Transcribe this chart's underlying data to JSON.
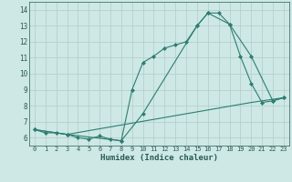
{
  "xlabel": "Humidex (Indice chaleur)",
  "bg_color": "#cde8e5",
  "grid_color": "#b5d0ce",
  "line_color": "#2e7d72",
  "xlim": [
    -0.5,
    23.5
  ],
  "ylim": [
    5.5,
    14.5
  ],
  "xticks": [
    0,
    1,
    2,
    3,
    4,
    5,
    6,
    7,
    8,
    9,
    10,
    11,
    12,
    13,
    14,
    15,
    16,
    17,
    18,
    19,
    20,
    21,
    22,
    23
  ],
  "yticks": [
    6,
    7,
    8,
    9,
    10,
    11,
    12,
    13,
    14
  ],
  "line1_x": [
    0,
    1,
    2,
    3,
    4,
    5,
    6,
    7,
    8,
    9,
    10,
    11,
    12,
    13,
    14,
    15,
    16,
    17,
    18,
    19,
    20,
    21,
    22,
    23
  ],
  "line1_y": [
    6.5,
    6.3,
    6.3,
    6.2,
    6.0,
    5.9,
    6.1,
    5.9,
    5.8,
    9.0,
    10.7,
    11.1,
    11.6,
    11.8,
    12.0,
    13.0,
    13.8,
    13.8,
    13.1,
    11.1,
    9.4,
    8.2,
    8.3,
    8.5
  ],
  "line2_x": [
    0,
    3,
    8,
    10,
    15,
    16,
    18,
    20,
    22,
    23
  ],
  "line2_y": [
    6.5,
    6.2,
    5.8,
    7.5,
    13.0,
    13.8,
    13.1,
    11.1,
    8.3,
    8.5
  ],
  "line3_x": [
    0,
    3,
    20,
    23
  ],
  "line3_y": [
    6.5,
    6.2,
    8.2,
    8.5
  ]
}
